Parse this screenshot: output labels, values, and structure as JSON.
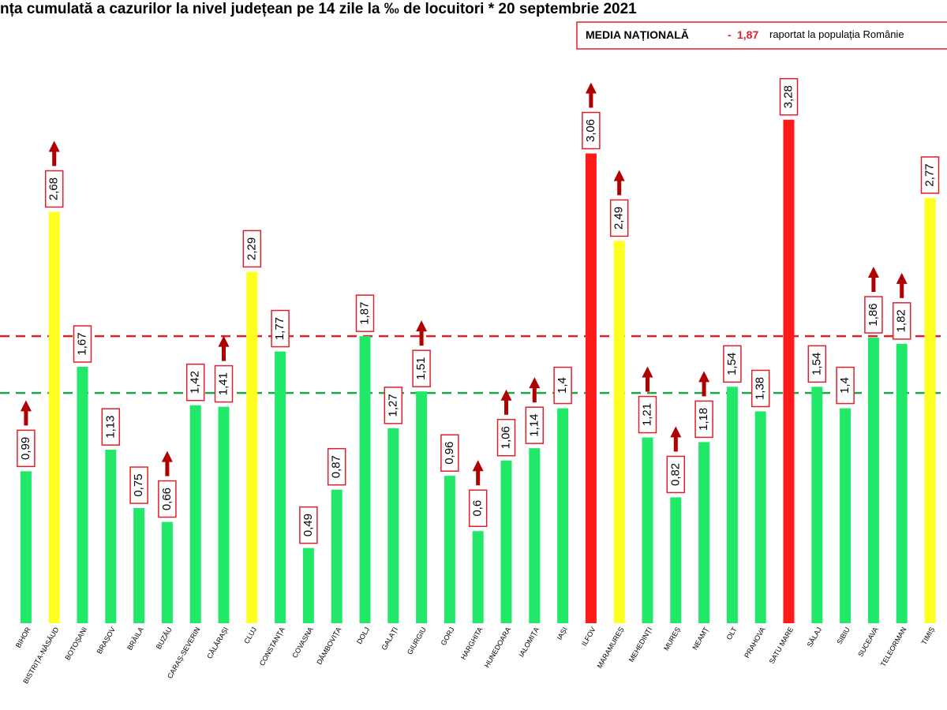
{
  "chart_data": {
    "type": "bar",
    "title": "nța cumulată a cazurilor la nivel județean pe 14 zile la ‰ de locuitori * 20 septembrie 2021",
    "legend": {
      "label": "MEDIA NAȚIONALĂ",
      "dash": "-",
      "value": {
        "value": 1.87,
        "label": "1,87"
      },
      "text": "raportat la populația Românie"
    },
    "reference_line": 1.5,
    "categories": [
      "BIHOR",
      "BISTRIȚA-NĂSĂUD",
      "BOTOȘANI",
      "BRAȘOV",
      "BRĂILA",
      "BUZĂU",
      "CARAȘ-SEVERIN",
      "CĂLĂRAȘI",
      "CLUJ",
      "CONSTANȚA",
      "COVASNA",
      "DÂMBOVIȚA",
      "DOLJ",
      "GALAȚI",
      "GIURGIU",
      "GORJ",
      "HARGHITA",
      "HUNEDOARA",
      "IALOMIȚA",
      "IAȘI",
      "ILFOV",
      "MARAMUREȘ",
      "MEHEDINȚI",
      "MUREȘ",
      "NEAMȚ",
      "OLT",
      "PRAHOVA",
      "SATU MARE",
      "SĂLAJ",
      "SIBIU",
      "SUCEAVA",
      "TELEORMAN",
      "TIMIȘ"
    ],
    "values": [
      0.99,
      2.68,
      1.67,
      1.13,
      0.75,
      0.66,
      1.42,
      1.41,
      2.29,
      1.77,
      0.49,
      0.87,
      1.87,
      1.27,
      1.51,
      0.96,
      0.6,
      1.06,
      1.14,
      1.4,
      3.06,
      2.49,
      1.21,
      0.82,
      1.18,
      1.54,
      1.38,
      3.28,
      1.54,
      1.4,
      1.86,
      1.82,
      2.77
    ],
    "value_labels": [
      "0,99",
      "2,68",
      "1,67",
      "1,13",
      "0,75",
      "0,66",
      "1,42",
      "1,41",
      "2,29",
      "1,77",
      "0,49",
      "0,87",
      "1,87",
      "1,27",
      "1,51",
      "0,96",
      "0,6",
      "1,06",
      "1,14",
      "1,4",
      "3,06",
      "2,49",
      "1,21",
      "0,82",
      "1,18",
      "1,54",
      "1,38",
      "3,28",
      "1,54",
      "1,4",
      "1,86",
      "1,82",
      "2,77"
    ],
    "colors": [
      "#22e86a",
      "#ffff22",
      "#22e86a",
      "#22e86a",
      "#22e86a",
      "#22e86a",
      "#22e86a",
      "#22e86a",
      "#ffff22",
      "#22e86a",
      "#22e86a",
      "#22e86a",
      "#22e86a",
      "#22e86a",
      "#22e86a",
      "#22e86a",
      "#22e86a",
      "#22e86a",
      "#22e86a",
      "#22e86a",
      "#ff1a1a",
      "#ffff22",
      "#22e86a",
      "#22e86a",
      "#22e86a",
      "#22e86a",
      "#22e86a",
      "#ff1a1a",
      "#22e86a",
      "#22e86a",
      "#22e86a",
      "#22e86a",
      "#ffff22"
    ],
    "trend_up": [
      true,
      true,
      false,
      false,
      false,
      true,
      false,
      true,
      false,
      false,
      false,
      false,
      false,
      false,
      true,
      false,
      true,
      true,
      true,
      false,
      true,
      true,
      true,
      true,
      true,
      false,
      false,
      false,
      false,
      false,
      true,
      true,
      false
    ]
  }
}
